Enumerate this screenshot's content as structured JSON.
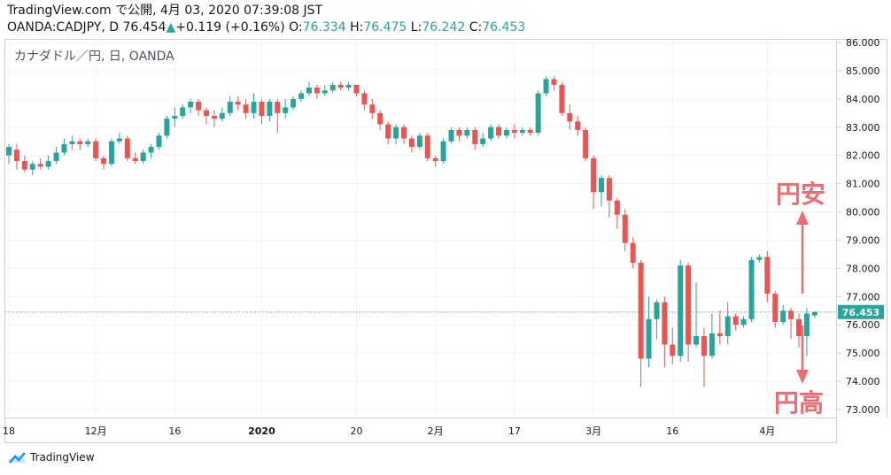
{
  "header": {
    "line1": "TradingView.com で公開, 4月 03, 2020 07:39:08 JST",
    "symbol": "OANDA:CADJPY, D",
    "last": "76.454",
    "change_arrow": "▲",
    "change": "+0.119 (+0.16%)",
    "o_label": "O:",
    "o_value": "76.334",
    "h_label": "H:",
    "h_value": "76.475",
    "l_label": "L:",
    "l_value": "76.242",
    "c_label": "C:",
    "c_value": "76.453"
  },
  "symbol_label": "カナダドル／円, 日, OANDA",
  "annotations": {
    "yen_weak": "円安",
    "yen_strong": "円高"
  },
  "footer": {
    "brand": "TradingView",
    "logo_icon": "tradingview-cloud-icon"
  },
  "colors": {
    "up": "#26a69a",
    "down": "#ef5350",
    "grid": "#f0f3fa",
    "arrow": "#f06b72"
  },
  "chart_data": {
    "type": "candlestick",
    "title": "カナダドル／円, 日, OANDA",
    "ylim": [
      72.7,
      86.0
    ],
    "y_ticks": [
      "86.000",
      "85.000",
      "84.000",
      "83.000",
      "82.000",
      "81.000",
      "80.000",
      "79.000",
      "78.000",
      "77.000",
      "76.000",
      "75.000",
      "74.000",
      "73.000"
    ],
    "y_tick_values": [
      86,
      85,
      84,
      83,
      82,
      81,
      80,
      79,
      78,
      77,
      76,
      75,
      74,
      73
    ],
    "current_price_label": "76.453",
    "current_price": 76.453,
    "x_tick_labels": [
      {
        "label": "18",
        "index": 0
      },
      {
        "label": "12月",
        "index": 11
      },
      {
        "label": "16",
        "index": 21
      },
      {
        "label": "2020",
        "index": 32
      },
      {
        "label": "20",
        "index": 44
      },
      {
        "label": "2月",
        "index": 54
      },
      {
        "label": "17",
        "index": 64
      },
      {
        "label": "3月",
        "index": 74
      },
      {
        "label": "16",
        "index": 84
      },
      {
        "label": "4月",
        "index": 96
      }
    ],
    "candles": [
      [
        82.0,
        82.3,
        81.7,
        82.4
      ],
      [
        82.2,
        81.8,
        81.5,
        82.4
      ],
      [
        81.8,
        81.5,
        81.4,
        82.0
      ],
      [
        81.5,
        81.7,
        81.3,
        81.8
      ],
      [
        81.7,
        81.6,
        81.5,
        81.9
      ],
      [
        81.6,
        81.8,
        81.5,
        82.0
      ],
      [
        81.8,
        82.1,
        81.7,
        82.3
      ],
      [
        82.1,
        82.4,
        82.0,
        82.6
      ],
      [
        82.4,
        82.5,
        82.2,
        82.7
      ],
      [
        82.5,
        82.4,
        82.2,
        82.6
      ],
      [
        82.4,
        82.5,
        82.3,
        82.6
      ],
      [
        82.5,
        81.9,
        81.8,
        82.6
      ],
      [
        81.9,
        81.7,
        81.5,
        82.0
      ],
      [
        81.7,
        82.5,
        81.6,
        82.6
      ],
      [
        82.5,
        82.6,
        82.4,
        82.8
      ],
      [
        82.6,
        81.9,
        81.8,
        82.7
      ],
      [
        81.9,
        81.8,
        81.7,
        82.1
      ],
      [
        81.8,
        82.1,
        81.7,
        82.2
      ],
      [
        82.1,
        82.3,
        81.9,
        82.4
      ],
      [
        82.3,
        82.7,
        82.2,
        82.8
      ],
      [
        82.7,
        83.3,
        82.6,
        83.4
      ],
      [
        83.3,
        83.4,
        83.0,
        83.7
      ],
      [
        83.4,
        83.7,
        83.3,
        83.8
      ],
      [
        83.7,
        83.9,
        83.5,
        84.0
      ],
      [
        83.9,
        83.6,
        83.4,
        84.0
      ],
      [
        83.6,
        83.4,
        83.1,
        83.7
      ],
      [
        83.4,
        83.3,
        83.0,
        83.6
      ],
      [
        83.3,
        83.5,
        83.2,
        83.7
      ],
      [
        83.5,
        83.9,
        83.4,
        84.1
      ],
      [
        83.9,
        83.8,
        83.6,
        84.1
      ],
      [
        83.8,
        83.5,
        83.3,
        84.0
      ],
      [
        83.5,
        83.9,
        83.3,
        84.2
      ],
      [
        83.9,
        83.4,
        83.1,
        84.0
      ],
      [
        83.4,
        83.9,
        83.2,
        84.0
      ],
      [
        83.9,
        83.5,
        82.8,
        84.0
      ],
      [
        83.5,
        83.7,
        83.3,
        84.0
      ],
      [
        83.7,
        84.0,
        83.6,
        84.1
      ],
      [
        84.0,
        84.2,
        83.9,
        84.3
      ],
      [
        84.2,
        84.4,
        84.1,
        84.6
      ],
      [
        84.4,
        84.2,
        84.0,
        84.5
      ],
      [
        84.2,
        84.3,
        84.1,
        84.5
      ],
      [
        84.3,
        84.5,
        84.2,
        84.6
      ],
      [
        84.5,
        84.4,
        84.3,
        84.6
      ],
      [
        84.4,
        84.5,
        84.3,
        84.6
      ],
      [
        84.5,
        84.2,
        84.1,
        84.5
      ],
      [
        84.2,
        83.8,
        83.6,
        84.3
      ],
      [
        83.8,
        83.5,
        83.3,
        84.0
      ],
      [
        83.5,
        83.1,
        82.9,
        83.6
      ],
      [
        83.1,
        82.6,
        82.4,
        83.2
      ],
      [
        82.6,
        83.0,
        82.4,
        83.1
      ],
      [
        83.0,
        82.6,
        82.4,
        83.1
      ],
      [
        82.6,
        82.3,
        82.1,
        82.7
      ],
      [
        82.3,
        82.7,
        82.2,
        82.8
      ],
      [
        82.7,
        81.9,
        81.8,
        82.8
      ],
      [
        81.9,
        81.8,
        81.6,
        82.0
      ],
      [
        81.8,
        82.5,
        81.7,
        82.6
      ],
      [
        82.5,
        82.9,
        82.4,
        83.0
      ],
      [
        82.9,
        82.7,
        82.5,
        83.0
      ],
      [
        82.7,
        82.9,
        82.6,
        83.0
      ],
      [
        82.9,
        82.4,
        82.2,
        83.0
      ],
      [
        82.4,
        82.6,
        82.3,
        82.8
      ],
      [
        82.6,
        83.0,
        82.5,
        83.1
      ],
      [
        83.0,
        82.7,
        82.6,
        83.1
      ],
      [
        82.7,
        82.9,
        82.6,
        83.0
      ],
      [
        82.9,
        82.8,
        82.6,
        83.1
      ],
      [
        82.8,
        82.9,
        82.7,
        83.0
      ],
      [
        82.9,
        82.8,
        82.7,
        83.0
      ],
      [
        82.8,
        84.2,
        82.7,
        84.3
      ],
      [
        84.2,
        84.7,
        84.1,
        84.8
      ],
      [
        84.7,
        84.5,
        84.3,
        84.8
      ],
      [
        84.5,
        83.5,
        83.4,
        84.6
      ],
      [
        83.5,
        83.2,
        82.9,
        83.8
      ],
      [
        83.2,
        82.9,
        82.7,
        83.4
      ],
      [
        82.9,
        81.9,
        81.8,
        83.0
      ],
      [
        81.9,
        80.7,
        80.1,
        82.0
      ],
      [
        80.7,
        81.2,
        80.2,
        81.3
      ],
      [
        81.2,
        80.4,
        79.8,
        81.3
      ],
      [
        80.4,
        79.9,
        79.4,
        80.5
      ],
      [
        79.9,
        78.9,
        78.6,
        80.1
      ],
      [
        78.9,
        78.2,
        78.0,
        79.1
      ],
      [
        78.2,
        74.8,
        73.8,
        78.3
      ],
      [
        74.8,
        76.2,
        74.5,
        77.0
      ],
      [
        76.2,
        76.8,
        75.5,
        76.9
      ],
      [
        76.8,
        75.3,
        74.5,
        77.0
      ],
      [
        75.3,
        74.9,
        74.6,
        75.9
      ],
      [
        74.9,
        78.1,
        74.7,
        78.3
      ],
      [
        78.1,
        75.3,
        74.7,
        78.2
      ],
      [
        75.3,
        75.6,
        75.2,
        77.5
      ],
      [
        75.6,
        74.9,
        73.8,
        75.9
      ],
      [
        74.9,
        75.7,
        74.8,
        76.4
      ],
      [
        75.7,
        75.6,
        75.3,
        76.5
      ],
      [
        75.6,
        76.3,
        75.3,
        76.8
      ],
      [
        76.3,
        76.0,
        75.8,
        76.4
      ],
      [
        76.0,
        76.2,
        75.9,
        76.3
      ],
      [
        76.2,
        78.3,
        76.1,
        78.4
      ],
      [
        78.3,
        78.4,
        78.2,
        78.5
      ],
      [
        78.4,
        77.1,
        76.8,
        78.6
      ],
      [
        77.1,
        76.1,
        75.9,
        77.2
      ],
      [
        76.1,
        76.5,
        76.0,
        76.7
      ],
      [
        76.5,
        76.2,
        75.5,
        76.6
      ],
      [
        76.2,
        75.6,
        75.2,
        76.4
      ],
      [
        75.6,
        76.4,
        74.9,
        76.6
      ],
      [
        76.334,
        76.453,
        76.242,
        76.475
      ]
    ]
  }
}
